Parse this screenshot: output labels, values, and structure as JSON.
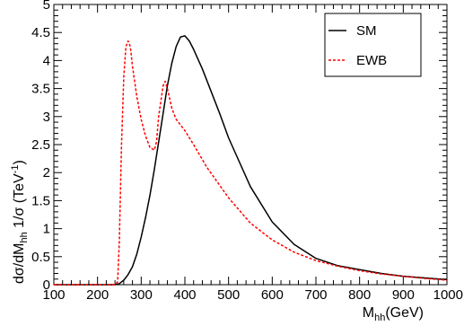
{
  "chart_data": {
    "type": "line",
    "title": "",
    "xlabel": {
      "main": "M",
      "sub": "hh",
      "rest": "(GeV)"
    },
    "ylabel": {
      "p1": "dσ/dM",
      "sub": "hh",
      "p2": " 1/σ (TeV",
      "sup": "-1",
      "p3": ")"
    },
    "xlim": [
      100,
      1000
    ],
    "ylim": [
      0,
      5
    ],
    "x_ticks": [
      100,
      200,
      300,
      400,
      500,
      600,
      700,
      800,
      900,
      1000
    ],
    "x_tick_labels": [
      "100",
      "200",
      "300",
      "400",
      "500",
      "600",
      "700",
      "800",
      "900",
      "1000"
    ],
    "y_ticks": [
      0,
      0.5,
      1,
      1.5,
      2,
      2.5,
      3,
      3.5,
      4,
      4.5,
      5
    ],
    "y_tick_labels": [
      "0",
      "0.5",
      "1",
      "1.5",
      "2",
      "2.5",
      "3",
      "3.5",
      "4",
      "4.5",
      "5"
    ],
    "grid": false,
    "legend_position": "top-right",
    "series": [
      {
        "name": "SM",
        "color": "#000000",
        "dash": "solid",
        "x": [
          100,
          240,
          250,
          260,
          270,
          280,
          290,
          300,
          310,
          320,
          330,
          340,
          350,
          360,
          370,
          380,
          390,
          400,
          410,
          420,
          440,
          460,
          480,
          500,
          550,
          600,
          650,
          700,
          750,
          800,
          850,
          900,
          950,
          1000
        ],
        "y": [
          0,
          0,
          0.02,
          0.08,
          0.18,
          0.32,
          0.55,
          0.85,
          1.2,
          1.6,
          2.05,
          2.55,
          3.05,
          3.55,
          3.95,
          4.25,
          4.42,
          4.44,
          4.35,
          4.2,
          3.85,
          3.45,
          3.05,
          2.62,
          1.75,
          1.12,
          0.72,
          0.47,
          0.34,
          0.27,
          0.2,
          0.15,
          0.12,
          0.09
        ]
      },
      {
        "name": "EWB",
        "color": "#ff0000",
        "dash": "dashed",
        "x": [
          100,
          240,
          246,
          250,
          255,
          260,
          265,
          270,
          275,
          280,
          290,
          300,
          310,
          320,
          330,
          335,
          340,
          350,
          355,
          360,
          370,
          380,
          400,
          420,
          450,
          500,
          550,
          600,
          650,
          700,
          750,
          800,
          850,
          900,
          950,
          1000
        ],
        "y": [
          0,
          0,
          0.05,
          0.8,
          2.5,
          3.7,
          4.25,
          4.35,
          4.25,
          3.9,
          3.35,
          2.95,
          2.65,
          2.45,
          2.4,
          2.55,
          3.0,
          3.55,
          3.63,
          3.5,
          3.15,
          2.95,
          2.75,
          2.5,
          2.1,
          1.55,
          1.1,
          0.8,
          0.58,
          0.43,
          0.33,
          0.25,
          0.19,
          0.15,
          0.11,
          0.08
        ]
      }
    ]
  }
}
